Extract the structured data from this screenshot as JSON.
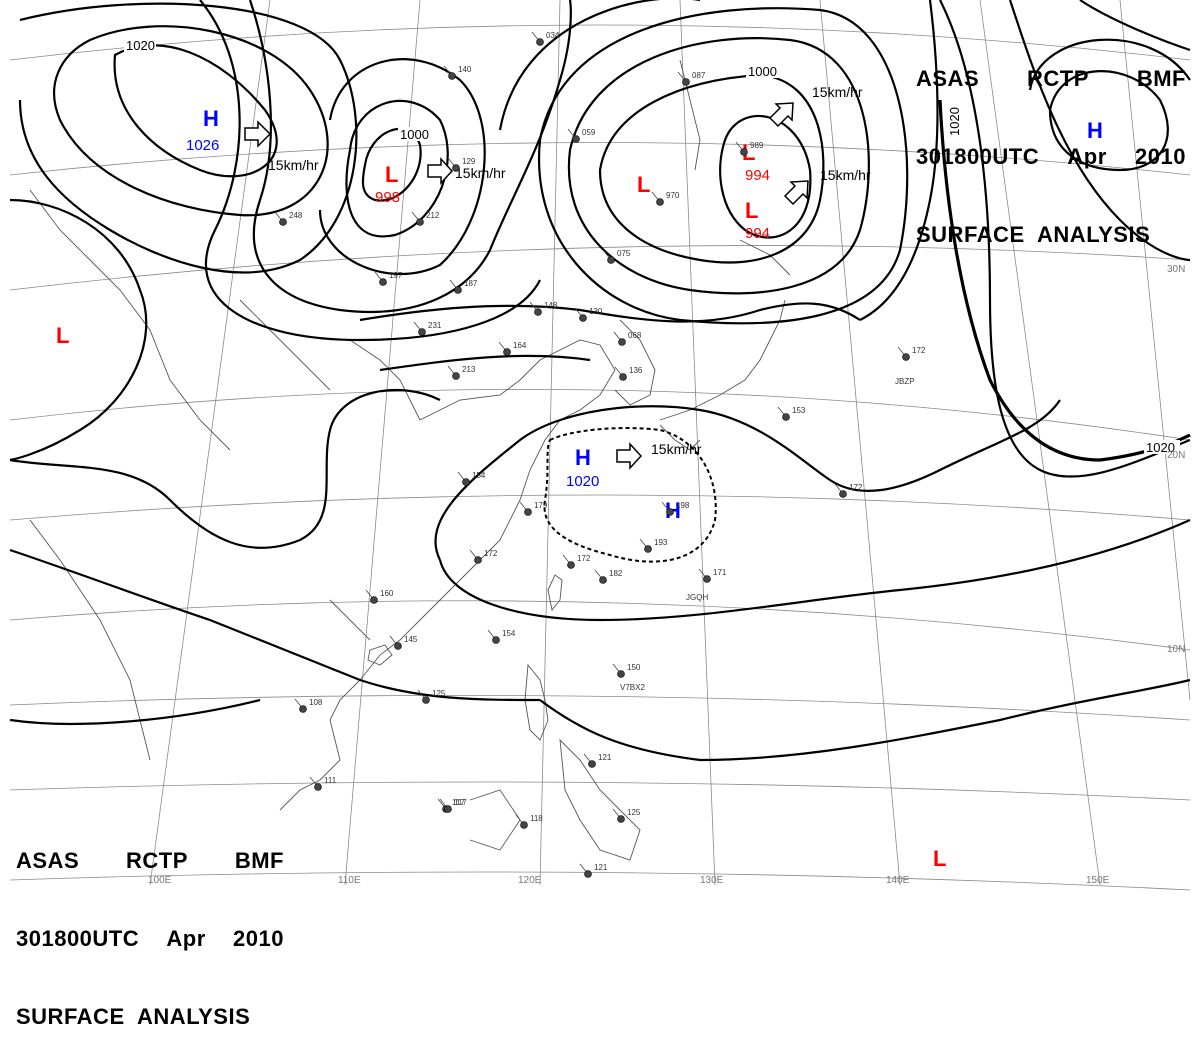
{
  "header": {
    "line1": [
      "ASAS",
      "RCTP",
      "BMF"
    ],
    "line2": [
      "301800UTC",
      "Apr",
      "2010"
    ],
    "line3": "SURFACE  ANALYSIS"
  },
  "colors": {
    "high": "#0000ff",
    "low": "#ff0000",
    "isobar": "#000000",
    "grid": "#888888",
    "coast": "#555555"
  },
  "longitude_labels": [
    "110E",
    "120E",
    "130E",
    "140E",
    "150E",
    "100E"
  ],
  "latitude_labels": [
    "30N",
    "20N",
    "10N"
  ],
  "isobar_labels": [
    "1020",
    "1000",
    "1020",
    "1020"
  ],
  "pressure_centers": [
    {
      "type": "H",
      "value": "1026"
    },
    {
      "type": "L",
      "value": "998"
    },
    {
      "type": "L",
      "value": ""
    },
    {
      "type": "L",
      "value": "994"
    },
    {
      "type": "L",
      "value": "994"
    },
    {
      "type": "H",
      "value": ""
    },
    {
      "type": "L",
      "value": ""
    },
    {
      "type": "H",
      "value": "1020"
    },
    {
      "type": "H",
      "value": ""
    },
    {
      "type": "L",
      "value": ""
    }
  ],
  "motion_labels": [
    "15km/hr",
    "15km/hr",
    "15km/hr",
    "15km/hr",
    "15km/hr"
  ],
  "station_codes": [
    "JBZP",
    "JGQH",
    "V7BX2"
  ],
  "station_obs": [
    "034",
    "140",
    "129",
    "248",
    "197",
    "187",
    "148",
    "130",
    "231",
    "213",
    "164",
    "154",
    "179",
    "172",
    "160",
    "145",
    "154",
    "125",
    "108",
    "111",
    "117",
    "118",
    "121",
    "125",
    "121",
    "117",
    "150",
    "193",
    "198",
    "182",
    "172",
    "171",
    "153",
    "172",
    "172",
    "075",
    "970",
    "989",
    "087",
    "059",
    "212",
    "068",
    "136"
  ]
}
